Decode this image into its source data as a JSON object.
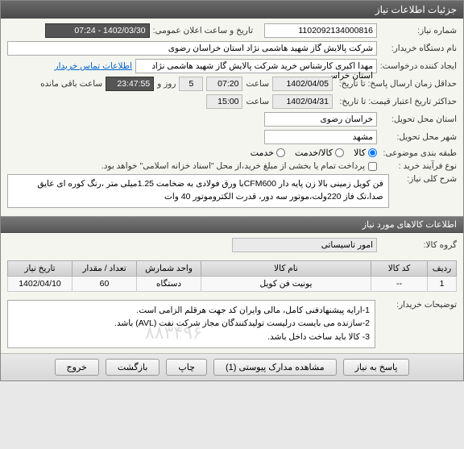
{
  "window": {
    "title": "جزئیات اطلاعات نیاز"
  },
  "form": {
    "need_no_label": "شماره نیاز:",
    "need_no": "1102092134000816",
    "announce_label": "تاریخ و ساعت اعلان عمومی:",
    "announce_value": "1402/03/30 - 07:24",
    "buyer_label": "نام دستگاه خریدار:",
    "buyer_value": "شرکت پالایش گاز شهید هاشمی نژاد   استان خراسان رضوی",
    "creator_label": "ایجاد کننده درخواست:",
    "creator_value": "مهدا اکبری کارشناس خرید شرکت پالایش گاز شهید هاشمی نژاد   استان خراس",
    "contact_link": "اطلاعات تماس خریدار",
    "deadline_label": "حداقل زمان ارسال پاسخ: تا تاریخ:",
    "deadline_date": "1402/04/05",
    "time_label": "ساعت",
    "deadline_time": "07:20",
    "days": "5",
    "days_label": "روز و",
    "countdown": "23:47:55",
    "remain_label": "ساعت باقی مانده",
    "validity_label": "حداکثر تاریخ اعتبار قیمت: تا تاریخ:",
    "validity_date": "1402/04/31",
    "validity_time": "15:00",
    "province_label": "استان محل تحویل:",
    "province_value": "خراسان رضوی",
    "city_label": "شهر محل تحویل:",
    "city_value": "مشهد",
    "category_label": "طبقه بندی موضوعی:",
    "cat_goods": "کالا",
    "cat_service": "کالا/خدمت",
    "cat_serviceonly": "خدمت",
    "process_label": "نوع فرآیند خرید :",
    "process_text": "پرداخت تمام یا بخشی از مبلغ خرید،از محل \"اسناد خزانه اسلامی\" خواهد بود.",
    "desc_label": "شرح کلی نیاز:",
    "desc_text": "فن کویل زمینی بالا زن پایه دار CFM600با ورق فولادی به ضخامت 1.25میلی متر ،رنگ کوره ای عایق صدا،تک فاز 220ولت،موتور سه دور، قدرت الکتروموتور 40 وات"
  },
  "items_section": {
    "title": "اطلاعات کالاهای مورد نیاز",
    "group_label": "گروه کالا:",
    "group_value": "امور تاسیساتی"
  },
  "table": {
    "headers": [
      "ردیف",
      "کد کالا",
      "نام کالا",
      "واحد شمارش",
      "تعداد / مقدار",
      "تاریخ نیاز"
    ],
    "rows": [
      [
        "1",
        "--",
        "یونیت فن کویل",
        "دستگاه",
        "60",
        "1402/04/10"
      ]
    ]
  },
  "notes": {
    "label": "توضیحات خریدار:",
    "text": "1-ارایه پیشنهادفنی کامل، مالی وایران کد جهت هرقلم الزامی است.\n2-سازنده می بایست درلیست تولیدکنندگان مجاز شرکت نفت (AVL)  باشد.\n3- کالا باید ساخت  داخل باشد."
  },
  "footer": {
    "respond": "پاسخ به نیاز",
    "attachments": "مشاهده مدارک پیوستی (1)",
    "print": "چاپ",
    "back": "بازگشت",
    "exit": "خروج"
  },
  "watermark": "۸۸۳۴۹۶"
}
